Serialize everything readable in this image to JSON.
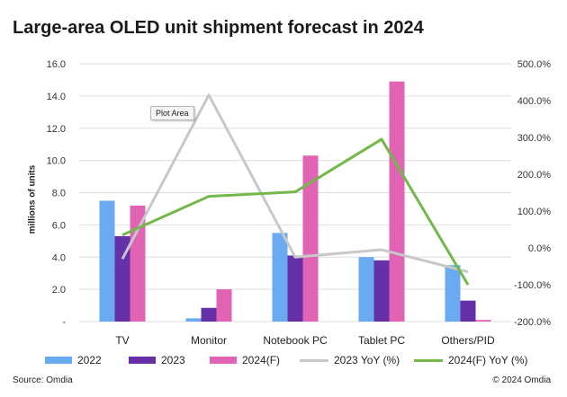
{
  "title": "Large-area OLED unit shipment forecast in 2024",
  "tooltip": "Plot Area",
  "source": "Source: Omdia",
  "copyright": "© 2024 Omdia",
  "chart_data": {
    "type": "bar",
    "categories": [
      "TV",
      "Monitor",
      "Notebook PC",
      "Tablet PC",
      "Others/PID"
    ],
    "ylabel": "millions of units",
    "y_ticks": [
      "-",
      "2.0",
      "4.0",
      "6.0",
      "8.0",
      "10.0",
      "12.0",
      "14.0",
      "16.0"
    ],
    "ylim": [
      0,
      16
    ],
    "y2_ticks": [
      "-200.0%",
      "-100.0%",
      "0.0%",
      "100.0%",
      "200.0%",
      "300.0%",
      "400.0%",
      "500.0%"
    ],
    "y2lim": [
      -200,
      500
    ],
    "grid": true,
    "legend_position": "bottom",
    "series": [
      {
        "name": "2022",
        "type": "bar",
        "axis": "left",
        "color": "#6aaaf0",
        "values": [
          7.5,
          0.2,
          5.5,
          4.0,
          3.5
        ]
      },
      {
        "name": "2023",
        "type": "bar",
        "axis": "left",
        "color": "#6630a8",
        "values": [
          5.3,
          0.85,
          4.1,
          3.8,
          1.3
        ]
      },
      {
        "name": "2024(F)",
        "type": "bar",
        "axis": "left",
        "color": "#e063b4",
        "values": [
          7.2,
          2.0,
          10.3,
          14.9,
          0.1
        ]
      },
      {
        "name": "2023 YoY (%)",
        "type": "line",
        "axis": "right",
        "color": "#c8c8c8",
        "values": [
          -30,
          415,
          -25,
          -5,
          -65
        ]
      },
      {
        "name": "2024(F) YoY (%)",
        "type": "line",
        "axis": "right",
        "color": "#74b84a",
        "values": [
          35,
          140,
          152,
          295,
          -100
        ]
      }
    ]
  }
}
